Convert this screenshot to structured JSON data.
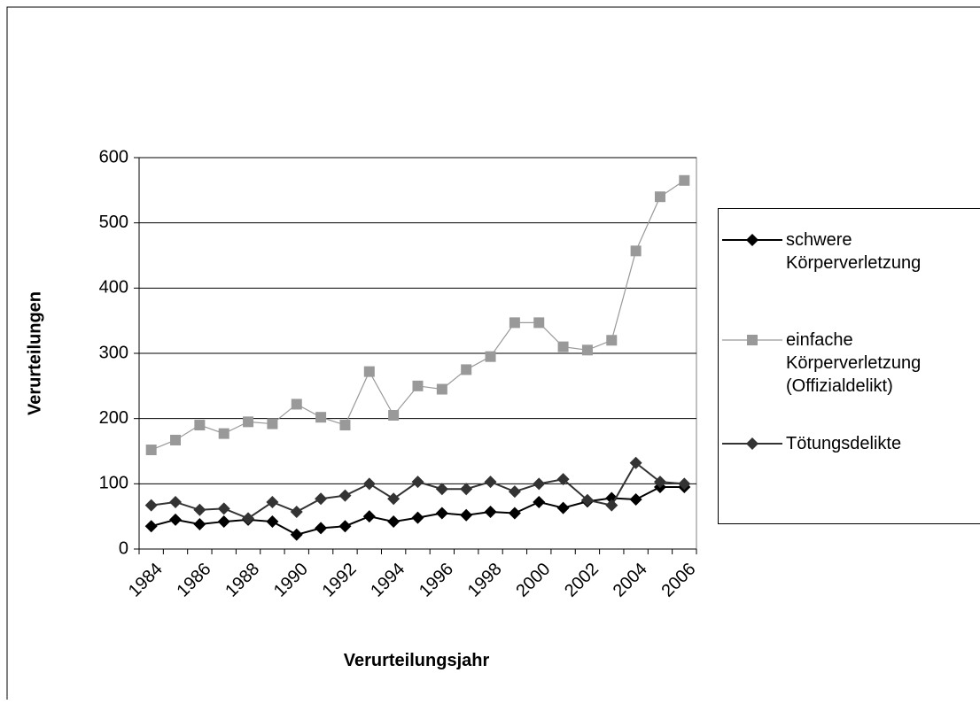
{
  "chart_data": {
    "type": "line",
    "xlabel": "Verurteilungsjahr",
    "ylabel": "Verurteilungen",
    "categories": [
      "1984",
      null,
      "1986",
      null,
      "1988",
      null,
      "1990",
      null,
      "1992",
      null,
      "1994",
      null,
      "1996",
      null,
      "1998",
      null,
      "2000",
      null,
      "2002",
      null,
      "2004",
      null,
      "2006"
    ],
    "series": [
      {
        "name": "schwere Körperverletzung",
        "color": "#000000",
        "marker": "diamond",
        "values": [
          35,
          45,
          38,
          42,
          45,
          42,
          22,
          32,
          35,
          50,
          42,
          48,
          55,
          52,
          57,
          55,
          72,
          63,
          73,
          78,
          76,
          95,
          95
        ]
      },
      {
        "name": "einfache Körperverletzung (Offizialdelikt)",
        "color": "#999999",
        "marker": "square",
        "values": [
          152,
          167,
          190,
          177,
          195,
          192,
          222,
          202,
          190,
          272,
          205,
          250,
          245,
          275,
          295,
          347,
          347,
          310,
          305,
          320,
          457,
          540,
          565
        ]
      },
      {
        "name": "Tötungsdelikte",
        "color": "#333333",
        "marker": "diamond",
        "values": [
          67,
          72,
          60,
          62,
          47,
          72,
          57,
          77,
          82,
          100,
          77,
          103,
          92,
          92,
          103,
          88,
          100,
          107,
          75,
          67,
          132,
          103,
          100
        ]
      }
    ],
    "ylim": [
      0,
      600
    ],
    "yticks": [
      0,
      100,
      200,
      300,
      400,
      500,
      600
    ],
    "grid": true,
    "legend": "right"
  }
}
